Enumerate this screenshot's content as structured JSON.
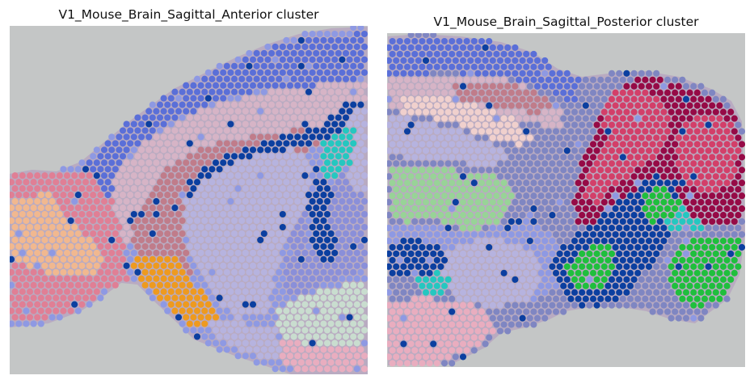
{
  "panels": [
    {
      "title": "V1_Mouse_Brain_Sagittal_Anterior cluster"
    },
    {
      "title": "V1_Mouse_Brain_Sagittal_Posterior cluster"
    }
  ],
  "colors": {
    "background": "#c4c6c6",
    "tissue": "#b7a6c0",
    "c_cortex_blue": "#5a6fd8",
    "c_cortex_light": "#8e99e3",
    "c_pink_light": "#d6b4c6",
    "c_mauve": "#c07c8a",
    "c_lavender": "#b6b3df",
    "c_navy": "#0b3fa0",
    "c_turquoise": "#25c7c0",
    "c_orange": "#ee9a1f",
    "c_peach": "#f1b88f",
    "c_rose": "#e07f95",
    "c_pale_green": "#c9ddcf",
    "c_light_pink": "#e9adbf",
    "c_periwinkle": "#8a8fd9",
    "c_blush": "#f0d0cd",
    "c_mint": "#98d397",
    "c_crimson": "#960a46",
    "c_pinkred": "#d33f69",
    "c_green": "#1fbf3d",
    "c_slate": "#7f86c2"
  },
  "chart_data": [
    {
      "type": "scatter",
      "title": "V1_Mouse_Brain_Sagittal_Anterior cluster",
      "xlabel": "",
      "ylabel": "",
      "grid": false,
      "legend": "none",
      "marker": "circle",
      "note_clusters": [
        "cortex_blue",
        "cortex_light",
        "pink_light",
        "mauve",
        "lavender",
        "navy",
        "turquoise",
        "orange",
        "peach",
        "rose",
        "pale_green",
        "light_pink",
        "periwinkle"
      ]
    },
    {
      "type": "scatter",
      "title": "V1_Mouse_Brain_Sagittal_Posterior cluster",
      "xlabel": "",
      "ylabel": "",
      "grid": false,
      "legend": "none",
      "marker": "circle",
      "note_clusters": [
        "cortex_blue",
        "cortex_light",
        "pink_light",
        "mauve",
        "lavender",
        "navy",
        "turquoise",
        "blush",
        "mint",
        "crimson",
        "pinkred",
        "green",
        "light_pink",
        "slate"
      ]
    }
  ]
}
